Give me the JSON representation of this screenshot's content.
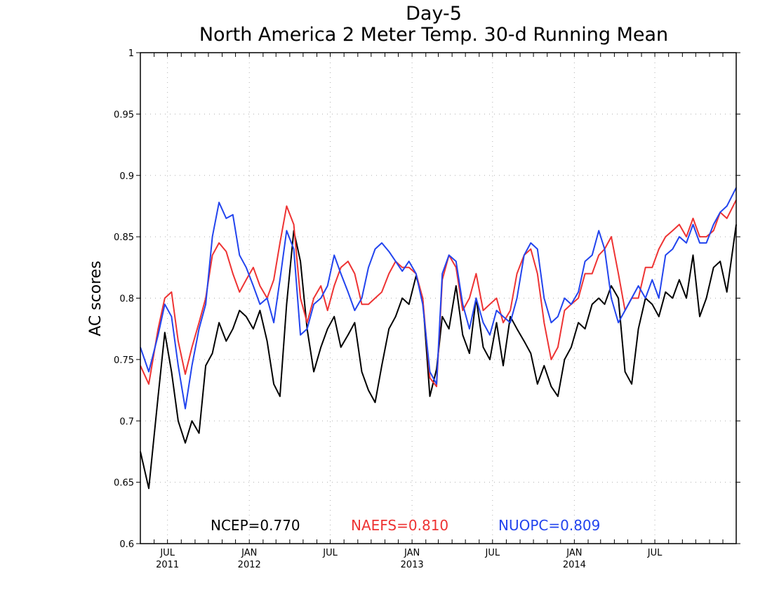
{
  "chart_data": {
    "type": "line",
    "title": "Day-5",
    "subtitle": "North America 2 Meter Temp. 30-d Running Mean",
    "ylabel": "AC scores",
    "ylim": [
      0.6,
      1.0
    ],
    "yticks": [
      "0.6",
      "0.65",
      "0.7",
      "0.75",
      "0.8",
      "0.85",
      "0.9",
      "0.95",
      "1"
    ],
    "xlim": [
      "2011-05-01",
      "2014-12-31"
    ],
    "xticks": [
      {
        "date": "2011-07-01",
        "label": "JUL",
        "year": "2011"
      },
      {
        "date": "2012-01-01",
        "label": "JAN",
        "year": "2012"
      },
      {
        "date": "2012-07-01",
        "label": "JUL",
        "year": ""
      },
      {
        "date": "2013-01-01",
        "label": "JAN",
        "year": "2013"
      },
      {
        "date": "2013-07-01",
        "label": "JUL",
        "year": ""
      },
      {
        "date": "2014-01-01",
        "label": "JAN",
        "year": "2014"
      },
      {
        "date": "2014-07-01",
        "label": "JUL",
        "year": ""
      }
    ],
    "grid": true,
    "legend_position": "bottom",
    "x": [
      "2011-05-01",
      "2011-05-20",
      "2011-06-10",
      "2011-06-25",
      "2011-07-10",
      "2011-07-25",
      "2011-08-10",
      "2011-08-25",
      "2011-09-10",
      "2011-09-25",
      "2011-10-10",
      "2011-10-25",
      "2011-11-10",
      "2011-11-25",
      "2011-12-10",
      "2011-12-25",
      "2012-01-10",
      "2012-01-25",
      "2012-02-10",
      "2012-02-25",
      "2012-03-10",
      "2012-03-25",
      "2012-04-10",
      "2012-04-25",
      "2012-05-10",
      "2012-05-25",
      "2012-06-10",
      "2012-06-25",
      "2012-07-10",
      "2012-07-25",
      "2012-08-10",
      "2012-08-25",
      "2012-09-10",
      "2012-09-25",
      "2012-10-10",
      "2012-10-25",
      "2012-11-10",
      "2012-11-25",
      "2012-12-10",
      "2012-12-25",
      "2013-01-10",
      "2013-01-25",
      "2013-02-10",
      "2013-02-25",
      "2013-03-10",
      "2013-03-25",
      "2013-04-10",
      "2013-04-25",
      "2013-05-10",
      "2013-05-25",
      "2013-06-10",
      "2013-06-25",
      "2013-07-10",
      "2013-07-25",
      "2013-08-10",
      "2013-08-25",
      "2013-09-10",
      "2013-09-25",
      "2013-10-10",
      "2013-10-25",
      "2013-11-10",
      "2013-11-25",
      "2013-12-10",
      "2013-12-25",
      "2014-01-10",
      "2014-01-25",
      "2014-02-10",
      "2014-02-25",
      "2014-03-10",
      "2014-03-25",
      "2014-04-10",
      "2014-04-25",
      "2014-05-10",
      "2014-05-25",
      "2014-06-10",
      "2014-06-25",
      "2014-07-10",
      "2014-07-25",
      "2014-08-10",
      "2014-08-25",
      "2014-09-10",
      "2014-09-25",
      "2014-10-10",
      "2014-10-25",
      "2014-11-10",
      "2014-11-25",
      "2014-12-10",
      "2014-12-31"
    ],
    "series": [
      {
        "name": "NCEP",
        "legend": "NCEP=0.770",
        "color": "#000000",
        "values": [
          0.675,
          0.645,
          0.72,
          0.772,
          0.74,
          0.7,
          0.682,
          0.7,
          0.69,
          0.745,
          0.755,
          0.78,
          0.765,
          0.775,
          0.79,
          0.785,
          0.775,
          0.79,
          0.765,
          0.73,
          0.72,
          0.795,
          0.855,
          0.83,
          0.775,
          0.74,
          0.76,
          0.775,
          0.785,
          0.76,
          0.77,
          0.78,
          0.74,
          0.725,
          0.715,
          0.745,
          0.775,
          0.785,
          0.8,
          0.795,
          0.818,
          0.8,
          0.72,
          0.742,
          0.785,
          0.775,
          0.81,
          0.77,
          0.755,
          0.8,
          0.76,
          0.75,
          0.78,
          0.745,
          0.785,
          0.775,
          0.765,
          0.755,
          0.73,
          0.745,
          0.728,
          0.72,
          0.75,
          0.76,
          0.78,
          0.775,
          0.795,
          0.8,
          0.795,
          0.81,
          0.8,
          0.74,
          0.73,
          0.775,
          0.8,
          0.795,
          0.785,
          0.805,
          0.8,
          0.815,
          0.8,
          0.835,
          0.785,
          0.8,
          0.825,
          0.83,
          0.805,
          0.86
        ]
      },
      {
        "name": "NAEFS",
        "legend": "NAEFS=0.810",
        "color": "#ee3333",
        "values": [
          0.745,
          0.73,
          0.775,
          0.8,
          0.805,
          0.765,
          0.738,
          0.76,
          0.78,
          0.8,
          0.835,
          0.845,
          0.838,
          0.82,
          0.805,
          0.815,
          0.825,
          0.81,
          0.8,
          0.815,
          0.845,
          0.875,
          0.86,
          0.8,
          0.78,
          0.8,
          0.81,
          0.79,
          0.81,
          0.825,
          0.83,
          0.82,
          0.795,
          0.795,
          0.8,
          0.805,
          0.82,
          0.83,
          0.825,
          0.825,
          0.82,
          0.8,
          0.735,
          0.728,
          0.815,
          0.835,
          0.825,
          0.79,
          0.8,
          0.82,
          0.79,
          0.795,
          0.8,
          0.78,
          0.79,
          0.82,
          0.835,
          0.84,
          0.82,
          0.78,
          0.75,
          0.76,
          0.79,
          0.795,
          0.8,
          0.82,
          0.82,
          0.835,
          0.84,
          0.85,
          0.82,
          0.79,
          0.8,
          0.8,
          0.825,
          0.825,
          0.84,
          0.85,
          0.855,
          0.86,
          0.85,
          0.865,
          0.85,
          0.85,
          0.855,
          0.87,
          0.865,
          0.88
        ]
      },
      {
        "name": "NUOPC",
        "legend": "NUOPC=0.809",
        "color": "#2244ee",
        "values": [
          0.76,
          0.74,
          0.77,
          0.795,
          0.785,
          0.745,
          0.71,
          0.745,
          0.775,
          0.795,
          0.85,
          0.878,
          0.865,
          0.868,
          0.835,
          0.825,
          0.81,
          0.795,
          0.8,
          0.78,
          0.815,
          0.855,
          0.84,
          0.77,
          0.775,
          0.795,
          0.8,
          0.81,
          0.835,
          0.82,
          0.805,
          0.79,
          0.8,
          0.825,
          0.84,
          0.845,
          0.838,
          0.83,
          0.822,
          0.83,
          0.82,
          0.795,
          0.74,
          0.73,
          0.82,
          0.835,
          0.83,
          0.795,
          0.775,
          0.8,
          0.78,
          0.77,
          0.79,
          0.785,
          0.78,
          0.8,
          0.835,
          0.845,
          0.84,
          0.8,
          0.78,
          0.785,
          0.8,
          0.795,
          0.805,
          0.83,
          0.835,
          0.855,
          0.84,
          0.8,
          0.78,
          0.79,
          0.8,
          0.81,
          0.8,
          0.815,
          0.8,
          0.835,
          0.84,
          0.85,
          0.845,
          0.86,
          0.845,
          0.845,
          0.86,
          0.87,
          0.875,
          0.89
        ]
      }
    ]
  }
}
